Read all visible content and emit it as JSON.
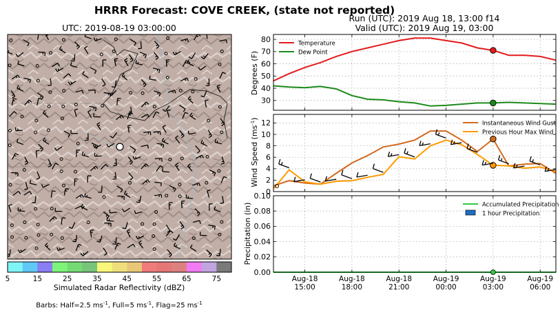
{
  "header": {
    "title": "HRRR Forecast: COVE CREEK, (state not reported)",
    "run": "Run (UTC): 2019 Aug 18, 13:00 f14",
    "valid": "Valid (UTC): 2019 Aug 19, 03:00"
  },
  "map": {
    "title": "UTC: 2019-08-19 03:00:00",
    "colorbar": {
      "label": "Simulated Radar Reflectivity (dBZ)",
      "ticks": [
        "5",
        "15",
        "25",
        "35",
        "45",
        "55",
        "65",
        "75"
      ],
      "colors": [
        "#7ff4f6",
        "#60c8f6",
        "#8a7ef3",
        "#7df47a",
        "#74db74",
        "#77c57a",
        "#f8f77a",
        "#efdf7c",
        "#e8c878",
        "#f07b7b",
        "#e57777",
        "#dd8180",
        "#f27bf3",
        "#c2a4e0",
        "#7a7a7a"
      ]
    },
    "barb_note": "Barbs: Half=2.5 ms",
    "barb_note_full": ", Full=5 ms",
    "barb_note_flag": ", Flag=25 ms",
    "barb_note_sup": "-1"
  },
  "chart_data": [
    {
      "type": "line",
      "ylabel": "Degrees (F)",
      "ylim": [
        22,
        84
      ],
      "yticks": [
        30,
        40,
        50,
        60,
        70,
        80
      ],
      "legend_position": "top-left",
      "x_hours": [
        13,
        14,
        15,
        16,
        17,
        18,
        19,
        20,
        21,
        22,
        23,
        24,
        25,
        26,
        27,
        28,
        29,
        30,
        31
      ],
      "series": [
        {
          "name": "Temperature",
          "color": "#e41a1c",
          "values": [
            46,
            52,
            57,
            61,
            66,
            70,
            73,
            76,
            79,
            81,
            81,
            79,
            77,
            73,
            71,
            67,
            67,
            66,
            63
          ]
        },
        {
          "name": "Dew Point",
          "color": "#1b8a1b",
          "values": [
            42,
            41,
            40.5,
            41.5,
            39.5,
            34,
            31,
            30.5,
            29,
            28,
            25.5,
            26,
            27,
            28,
            28,
            28.5,
            28,
            27.5,
            27
          ]
        }
      ],
      "marker": {
        "x_hour": 27,
        "values": [
          71,
          28
        ]
      }
    },
    {
      "type": "line",
      "ylabel": "Wind Speed (ms",
      "ylabel_sup": "-1",
      "ylabel_end": ")",
      "ylim": [
        0,
        13.5
      ],
      "yticks": [
        0,
        2,
        4,
        6,
        8,
        10,
        12
      ],
      "legend_position": "top-right",
      "x_hours": [
        13,
        14,
        15,
        16,
        17,
        18,
        19,
        20,
        21,
        22,
        23,
        24,
        25,
        26,
        27,
        28,
        29,
        30,
        31
      ],
      "series": [
        {
          "name": "Instantaneous Wind Gust",
          "color": "#d2691e",
          "values": [
            1.0,
            1.9,
            1.5,
            1.3,
            3.2,
            5.0,
            6.3,
            7.8,
            8.3,
            9.0,
            10.6,
            10.6,
            9.0,
            7.0,
            9.2,
            4.5,
            4.8,
            4.9,
            3.2
          ]
        },
        {
          "name": "Previous Hour Max Wind",
          "color": "#ff9a00",
          "values": [
            0.5,
            3.8,
            1.7,
            1.3,
            1.8,
            1.9,
            2.5,
            3.0,
            6.1,
            5.7,
            8.0,
            9.0,
            8.2,
            6.5,
            4.6,
            4.5,
            4.1,
            4.3,
            3.5
          ]
        }
      ],
      "marker": {
        "x_hour": 27,
        "values": [
          9.2,
          4.6
        ]
      }
    },
    {
      "type": "line",
      "ylabel": "Precipitation (in)",
      "ylim": [
        0,
        0.1
      ],
      "yticks": [
        "0.00",
        "0.02",
        "0.04",
        "0.06",
        "0.08",
        "0.10"
      ],
      "legend_position": "top-right",
      "series": [
        {
          "name": "Accumulated Precipitation",
          "color": "#2ecc40",
          "values": [
            0,
            0,
            0,
            0,
            0,
            0,
            0,
            0,
            0,
            0,
            0,
            0,
            0,
            0,
            0,
            0,
            0,
            0,
            0
          ]
        },
        {
          "name": "1 hour Precipitation",
          "color": "#1e6ec8",
          "values": []
        }
      ],
      "x_ticks": [
        {
          "hour": 15,
          "date": "Aug-18",
          "time": "15:00"
        },
        {
          "hour": 18,
          "date": "Aug-18",
          "time": "18:00"
        },
        {
          "hour": 21,
          "date": "Aug-18",
          "time": "21:00"
        },
        {
          "hour": 24,
          "date": "Aug-19",
          "time": "00:00"
        },
        {
          "hour": 27,
          "date": "Aug-19",
          "time": "03:00"
        },
        {
          "hour": 30,
          "date": "Aug-19",
          "time": "06:00"
        }
      ]
    }
  ]
}
